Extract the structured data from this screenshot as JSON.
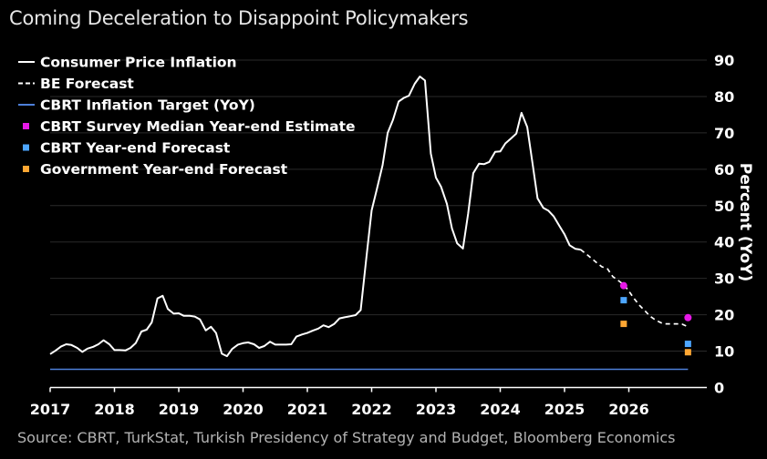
{
  "title": "Coming Deceleration to Disappoint Policymakers",
  "source": "Source: CBRT, TurkStat, Turkish Presidency of Strategy and Budget, Bloomberg Economics",
  "chart_data": {
    "type": "line",
    "ylabel": "Percent (YoY)",
    "xlabel": "",
    "ylim": [
      0,
      90
    ],
    "xlim": [
      2017,
      2027
    ],
    "yticks": [
      "0",
      "10",
      "20",
      "30",
      "40",
      "50",
      "60",
      "70",
      "80",
      "90"
    ],
    "xticks": [
      "2017",
      "2018",
      "2019",
      "2020",
      "2021",
      "2022",
      "2023",
      "2024",
      "2025",
      "2026"
    ],
    "grid": true,
    "legend_position": "top-left",
    "colors": {
      "cpi": "#ffffff",
      "forecast": "#ffffff",
      "target": "#4d7fd9",
      "survey": "#e619e6",
      "cbrt": "#4da6ff",
      "government": "#ffa733",
      "grid": "#2a2a2a",
      "axis": "#ffffff"
    },
    "legend": [
      {
        "label": "Consumer Price Inflation",
        "symbol": "line",
        "color": "#ffffff"
      },
      {
        "label": "BE Forecast",
        "symbol": "dash",
        "color": "#ffffff"
      },
      {
        "label": "CBRT Inflation Target (YoY)",
        "symbol": "line",
        "color": "#4d7fd9"
      },
      {
        "label": "CBRT Survey Median Year-end Estimate",
        "symbol": "square",
        "color": "#e619e6"
      },
      {
        "label": "CBRT Year-end Forecast",
        "symbol": "square",
        "color": "#4da6ff"
      },
      {
        "label": "Government Year-end Forecast",
        "symbol": "square",
        "color": "#ffa733"
      }
    ],
    "series": [
      {
        "name": "Consumer Price Inflation",
        "style": "solid",
        "points": [
          [
            2017.0,
            9.2
          ],
          [
            2017.08,
            10.1
          ],
          [
            2017.17,
            11.3
          ],
          [
            2017.25,
            11.9
          ],
          [
            2017.33,
            11.7
          ],
          [
            2017.42,
            10.9
          ],
          [
            2017.5,
            9.8
          ],
          [
            2017.58,
            10.7
          ],
          [
            2017.67,
            11.2
          ],
          [
            2017.75,
            11.9
          ],
          [
            2017.83,
            13.0
          ],
          [
            2017.92,
            11.9
          ],
          [
            2018.0,
            10.3
          ],
          [
            2018.08,
            10.3
          ],
          [
            2018.17,
            10.2
          ],
          [
            2018.25,
            10.9
          ],
          [
            2018.33,
            12.2
          ],
          [
            2018.42,
            15.4
          ],
          [
            2018.5,
            15.9
          ],
          [
            2018.58,
            17.9
          ],
          [
            2018.67,
            24.5
          ],
          [
            2018.75,
            25.2
          ],
          [
            2018.83,
            21.6
          ],
          [
            2018.92,
            20.3
          ],
          [
            2019.0,
            20.4
          ],
          [
            2019.08,
            19.7
          ],
          [
            2019.17,
            19.7
          ],
          [
            2019.25,
            19.5
          ],
          [
            2019.33,
            18.7
          ],
          [
            2019.42,
            15.7
          ],
          [
            2019.5,
            16.7
          ],
          [
            2019.58,
            15.0
          ],
          [
            2019.67,
            9.3
          ],
          [
            2019.75,
            8.6
          ],
          [
            2019.83,
            10.6
          ],
          [
            2019.92,
            11.8
          ],
          [
            2020.0,
            12.2
          ],
          [
            2020.08,
            12.4
          ],
          [
            2020.17,
            11.9
          ],
          [
            2020.25,
            10.9
          ],
          [
            2020.33,
            11.4
          ],
          [
            2020.42,
            12.6
          ],
          [
            2020.5,
            11.8
          ],
          [
            2020.58,
            11.8
          ],
          [
            2020.67,
            11.8
          ],
          [
            2020.75,
            11.9
          ],
          [
            2020.83,
            14.0
          ],
          [
            2020.92,
            14.6
          ],
          [
            2021.0,
            15.0
          ],
          [
            2021.08,
            15.6
          ],
          [
            2021.17,
            16.2
          ],
          [
            2021.25,
            17.1
          ],
          [
            2021.33,
            16.6
          ],
          [
            2021.42,
            17.5
          ],
          [
            2021.5,
            19.0
          ],
          [
            2021.58,
            19.3
          ],
          [
            2021.67,
            19.6
          ],
          [
            2021.75,
            19.9
          ],
          [
            2021.83,
            21.3
          ],
          [
            2021.92,
            36.1
          ],
          [
            2022.0,
            48.7
          ],
          [
            2022.08,
            54.4
          ],
          [
            2022.17,
            61.1
          ],
          [
            2022.25,
            70.0
          ],
          [
            2022.33,
            73.5
          ],
          [
            2022.42,
            78.6
          ],
          [
            2022.5,
            79.6
          ],
          [
            2022.58,
            80.2
          ],
          [
            2022.67,
            83.5
          ],
          [
            2022.75,
            85.5
          ],
          [
            2022.83,
            84.4
          ],
          [
            2022.92,
            64.3
          ],
          [
            2023.0,
            57.7
          ],
          [
            2023.08,
            55.2
          ],
          [
            2023.17,
            50.5
          ],
          [
            2023.25,
            43.7
          ],
          [
            2023.33,
            39.6
          ],
          [
            2023.42,
            38.2
          ],
          [
            2023.5,
            47.8
          ],
          [
            2023.58,
            58.9
          ],
          [
            2023.67,
            61.5
          ],
          [
            2023.75,
            61.4
          ],
          [
            2023.83,
            62.0
          ],
          [
            2023.92,
            64.8
          ],
          [
            2024.0,
            64.9
          ],
          [
            2024.08,
            67.1
          ],
          [
            2024.17,
            68.5
          ],
          [
            2024.25,
            69.8
          ],
          [
            2024.33,
            75.5
          ],
          [
            2024.42,
            71.6
          ],
          [
            2024.5,
            61.8
          ],
          [
            2024.58,
            52.0
          ],
          [
            2024.67,
            49.4
          ],
          [
            2024.75,
            48.6
          ],
          [
            2024.83,
            47.1
          ],
          [
            2024.92,
            44.4
          ],
          [
            2025.0,
            42.1
          ],
          [
            2025.08,
            39.1
          ],
          [
            2025.17,
            38.1
          ],
          [
            2025.25,
            37.9
          ]
        ]
      },
      {
        "name": "BE Forecast",
        "style": "dashed",
        "points": [
          [
            2025.25,
            37.9
          ],
          [
            2025.33,
            36.8
          ],
          [
            2025.42,
            35.5
          ],
          [
            2025.5,
            34.3
          ],
          [
            2025.58,
            33.2
          ],
          [
            2025.67,
            32.6
          ],
          [
            2025.75,
            30.5
          ],
          [
            2025.83,
            29.5
          ],
          [
            2025.92,
            28.3
          ],
          [
            2026.0,
            26.5
          ],
          [
            2026.08,
            24.5
          ],
          [
            2026.17,
            22.5
          ],
          [
            2026.25,
            21.1
          ],
          [
            2026.33,
            19.6
          ],
          [
            2026.42,
            18.5
          ],
          [
            2026.5,
            17.8
          ],
          [
            2026.58,
            17.5
          ],
          [
            2026.67,
            17.5
          ],
          [
            2026.75,
            17.5
          ],
          [
            2026.83,
            17.4
          ],
          [
            2026.92,
            16.7
          ]
        ]
      },
      {
        "name": "CBRT Inflation Target (YoY)",
        "style": "solid",
        "points": [
          [
            2017.0,
            5
          ],
          [
            2026.92,
            5
          ]
        ]
      }
    ],
    "markers": [
      {
        "name": "CBRT Survey Median Year-end Estimate",
        "shape": "circle",
        "points": [
          [
            2025.92,
            28.0
          ],
          [
            2026.92,
            19.2
          ]
        ]
      },
      {
        "name": "CBRT Year-end Forecast",
        "shape": "square",
        "points": [
          [
            2025.92,
            24.0
          ],
          [
            2026.92,
            12.0
          ]
        ]
      },
      {
        "name": "Government Year-end Forecast",
        "shape": "square",
        "points": [
          [
            2025.92,
            17.5
          ],
          [
            2026.92,
            9.7
          ]
        ]
      }
    ]
  }
}
